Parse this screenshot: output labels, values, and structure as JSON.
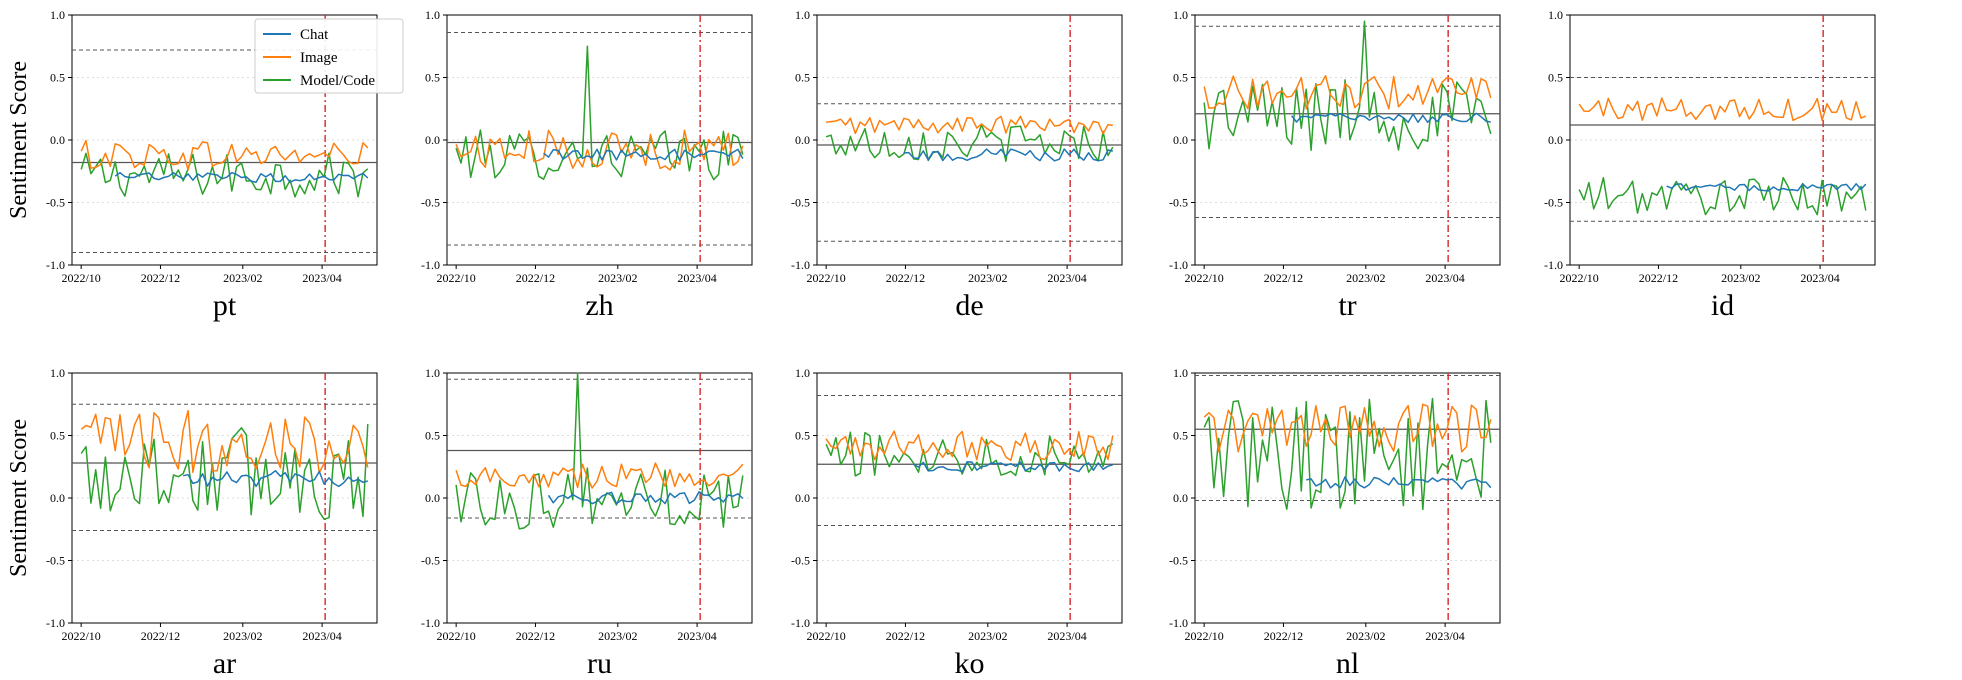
{
  "chart_data": {
    "type": "line",
    "figure_ylabel": "Sentiment Score",
    "xtick_labels": [
      "2022/10",
      "2022/12",
      "2023/02",
      "2023/04"
    ],
    "ytick_labels": [
      "1.0",
      "0.5",
      "0.0",
      "-0.5",
      "-1.0"
    ],
    "ylim": [
      -1.0,
      1.0
    ],
    "x_axis_dates": {
      "start": "2022/10",
      "end": "2023/05",
      "n_points": 60,
      "event_marker": "2023/04"
    },
    "legend": {
      "placement": "top-right of first panel",
      "entries": [
        {
          "name": "Chat",
          "color": "#1f77b4"
        },
        {
          "name": "Image",
          "color": "#ff7f0e"
        },
        {
          "name": "Model/Code",
          "color": "#2ca02c"
        }
      ]
    },
    "colors": {
      "chat": "#1f77b4",
      "image": "#ff7f0e",
      "model_code": "#2ca02c",
      "event_line": "#d62728",
      "mean_line": "#555555",
      "bound_line": "#555555",
      "grid": "#dddddd"
    },
    "panels": [
      {
        "title": "pt",
        "mean": -0.18,
        "upper": 0.72,
        "lower": -0.9,
        "series": {
          "chat": {
            "level": -0.3,
            "noise": 0.04,
            "start": 0.12
          },
          "image": {
            "level": -0.12,
            "noise": 0.12,
            "start": 0.0
          },
          "model_code": {
            "level": -0.28,
            "noise": 0.18,
            "start": 0.0
          }
        }
      },
      {
        "title": "zh",
        "mean": -0.02,
        "upper": 0.86,
        "lower": -0.84,
        "series": {
          "chat": {
            "level": -0.12,
            "noise": 0.05,
            "start": 0.3
          },
          "image": {
            "level": -0.08,
            "noise": 0.16,
            "start": 0.0
          },
          "model_code": {
            "level": -0.12,
            "noise": 0.2,
            "start": 0.0,
            "spike": [
              0.45,
              0.75
            ]
          }
        }
      },
      {
        "title": "de",
        "mean": -0.04,
        "upper": 0.29,
        "lower": -0.81,
        "series": {
          "chat": {
            "level": -0.12,
            "noise": 0.05,
            "start": 0.28
          },
          "image": {
            "level": 0.12,
            "noise": 0.07,
            "start": 0.0
          },
          "model_code": {
            "level": -0.02,
            "noise": 0.15,
            "start": 0.0
          }
        }
      },
      {
        "title": "tr",
        "mean": 0.21,
        "upper": 0.91,
        "lower": -0.62,
        "series": {
          "chat": {
            "level": 0.18,
            "noise": 0.04,
            "start": 0.3
          },
          "image": {
            "level": 0.38,
            "noise": 0.14,
            "start": 0.0
          },
          "model_code": {
            "level": 0.2,
            "noise": 0.3,
            "start": 0.0,
            "spike": [
              0.55,
              0.95
            ]
          }
        }
      },
      {
        "title": "id",
        "mean": 0.12,
        "upper": 0.5,
        "lower": -0.65,
        "series": {
          "chat": {
            "level": -0.38,
            "noise": 0.03,
            "start": 0.3
          },
          "image": {
            "level": 0.25,
            "noise": 0.1,
            "start": 0.0
          },
          "model_code": {
            "level": -0.45,
            "noise": 0.15,
            "start": 0.0
          }
        }
      },
      {
        "title": "ar",
        "mean": 0.28,
        "upper": 0.75,
        "lower": -0.26,
        "series": {
          "chat": {
            "level": 0.15,
            "noise": 0.07,
            "start": 0.35
          },
          "image": {
            "level": 0.45,
            "noise": 0.25,
            "start": 0.0
          },
          "model_code": {
            "level": 0.2,
            "noise": 0.4,
            "start": 0.0
          }
        }
      },
      {
        "title": "ru",
        "mean": 0.38,
        "upper": 0.95,
        "lower": -0.16,
        "series": {
          "chat": {
            "level": 0.0,
            "noise": 0.05,
            "start": 0.32
          },
          "image": {
            "level": 0.18,
            "noise": 0.1,
            "start": 0.0
          },
          "model_code": {
            "level": 0.0,
            "noise": 0.25,
            "start": 0.0,
            "spike": [
              0.42,
              1.0
            ]
          }
        }
      },
      {
        "title": "ko",
        "mean": 0.27,
        "upper": 0.82,
        "lower": -0.22,
        "series": {
          "chat": {
            "level": 0.25,
            "noise": 0.04,
            "start": 0.3
          },
          "image": {
            "level": 0.42,
            "noise": 0.12,
            "start": 0.0
          },
          "model_code": {
            "level": 0.35,
            "noise": 0.18,
            "start": 0.0
          }
        }
      },
      {
        "title": "nl",
        "mean": 0.55,
        "upper": 0.98,
        "lower": -0.02,
        "series": {
          "chat": {
            "level": 0.12,
            "noise": 0.05,
            "start": 0.35
          },
          "image": {
            "level": 0.55,
            "noise": 0.2,
            "start": 0.0
          },
          "model_code": {
            "level": 0.35,
            "noise": 0.45,
            "start": 0.0
          }
        }
      }
    ]
  }
}
